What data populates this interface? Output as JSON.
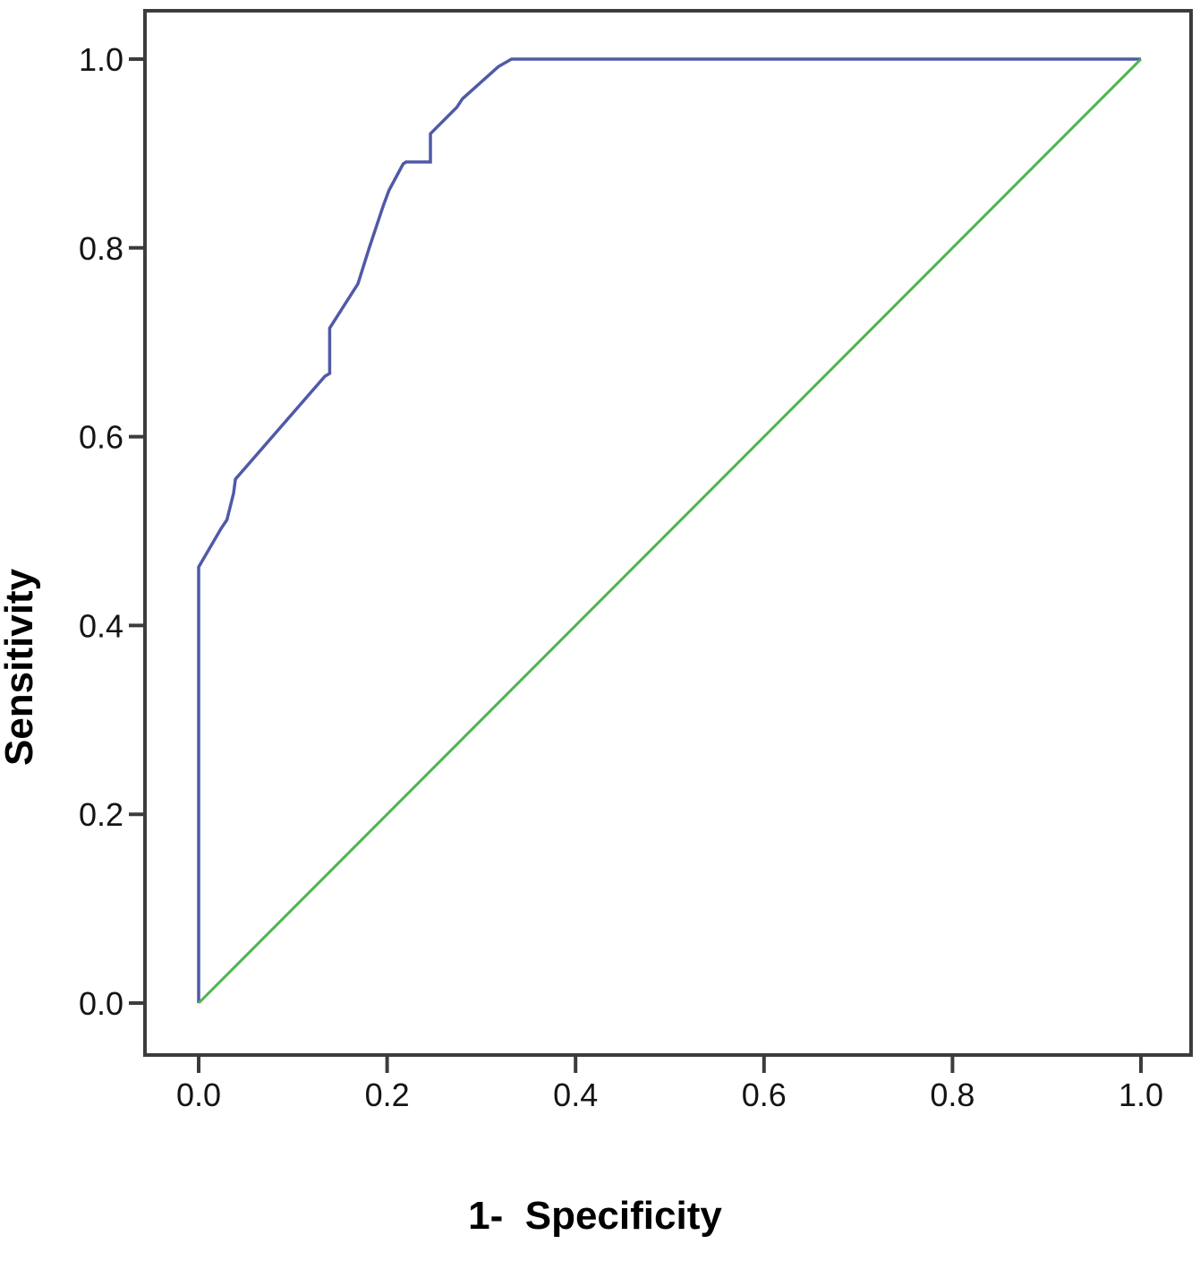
{
  "figure": {
    "kind": "roc-curve-plot",
    "background_color": "#ffffff",
    "border_color": "#3c3c3c",
    "tick_color": "#3c3c3c",
    "label_color": "#000000"
  },
  "chart_data": {
    "type": "line",
    "title": "",
    "xlabel": "1-  Specificity",
    "ylabel": "Sensitivity",
    "xlim": [
      0.0,
      1.0
    ],
    "ylim": [
      0.0,
      1.0
    ],
    "grid": false,
    "legend": "none",
    "x_ticks": [
      0.0,
      0.2,
      0.4,
      0.6,
      0.8,
      1.0
    ],
    "y_ticks": [
      0.0,
      0.2,
      0.4,
      0.6,
      0.8,
      1.0
    ],
    "x_tick_labels": [
      "0.0",
      "0.2",
      "0.4",
      "0.6",
      "0.8",
      "1.0"
    ],
    "y_tick_labels": [
      "0.0",
      "0.2",
      "0.4",
      "0.6",
      "0.8",
      "1.0"
    ],
    "series": [
      {
        "name": "roc-curve",
        "color": "#5059a8",
        "stroke_width": 3.5,
        "points": [
          [
            0.0,
            0.0
          ],
          [
            0.0,
            0.462
          ],
          [
            0.024,
            0.503
          ],
          [
            0.03,
            0.512
          ],
          [
            0.037,
            0.54
          ],
          [
            0.039,
            0.555
          ],
          [
            0.134,
            0.664
          ],
          [
            0.139,
            0.667
          ],
          [
            0.139,
            0.715
          ],
          [
            0.169,
            0.762
          ],
          [
            0.181,
            0.8
          ],
          [
            0.196,
            0.845
          ],
          [
            0.202,
            0.861
          ],
          [
            0.217,
            0.889
          ],
          [
            0.22,
            0.891
          ],
          [
            0.246,
            0.891
          ],
          [
            0.246,
            0.921
          ],
          [
            0.274,
            0.949
          ],
          [
            0.28,
            0.958
          ],
          [
            0.318,
            0.992
          ],
          [
            0.332,
            1.0
          ],
          [
            1.0,
            1.0
          ]
        ]
      },
      {
        "name": "reference-diagonal",
        "color": "#4eb44e",
        "stroke_width": 3,
        "points": [
          [
            0.0,
            0.0
          ],
          [
            1.0,
            1.0
          ]
        ]
      }
    ]
  }
}
